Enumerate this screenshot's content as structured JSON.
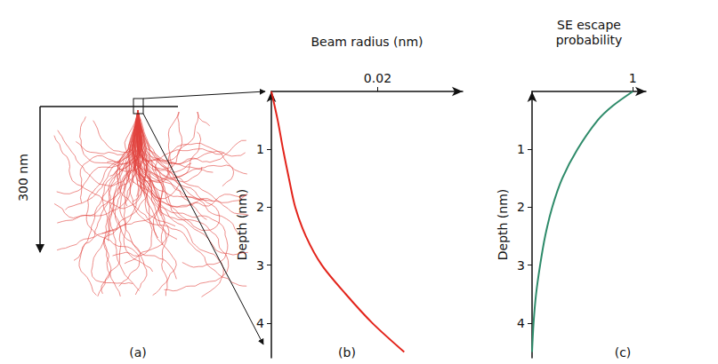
{
  "diagram": {
    "panel_label": "(a)",
    "scale_bar": "300 nm"
  },
  "chart_data": [
    {
      "type": "line",
      "panel_label": "(b)",
      "x_label": "Beam radius (nm)",
      "y_label": "Depth (nm)",
      "xlim": [
        0,
        0.036
      ],
      "xticks": [
        0.02
      ],
      "ylim": [
        0,
        4.6
      ],
      "yticks": [
        1,
        2,
        3,
        4
      ],
      "grid": false,
      "series": [
        {
          "color": "#e3241b",
          "x": [
            0,
            0.0012,
            0.0022,
            0.0033,
            0.0045,
            0.0065,
            0.0095,
            0.014,
            0.019,
            0.025
          ],
          "y": [
            0,
            0.5,
            1,
            1.5,
            2,
            2.5,
            3,
            3.5,
            4,
            4.5
          ]
        }
      ]
    },
    {
      "type": "line",
      "panel_label": "(c)",
      "x_label": "SE escape probability",
      "y_label": "Depth (nm)",
      "xlim": [
        0,
        1.13
      ],
      "xticks": [
        1
      ],
      "ylim": [
        0,
        4.6
      ],
      "yticks": [
        1,
        2,
        3,
        4
      ],
      "grid": false,
      "series": [
        {
          "color": "#2e8b6a",
          "x": [
            1,
            0.8,
            0.65,
            0.45,
            0.3,
            0.2,
            0.13,
            0.08,
            0.04,
            0.015,
            0
          ],
          "y": [
            0,
            0.25,
            0.5,
            1,
            1.5,
            2,
            2.5,
            3,
            3.5,
            4,
            4.5
          ]
        }
      ]
    }
  ]
}
